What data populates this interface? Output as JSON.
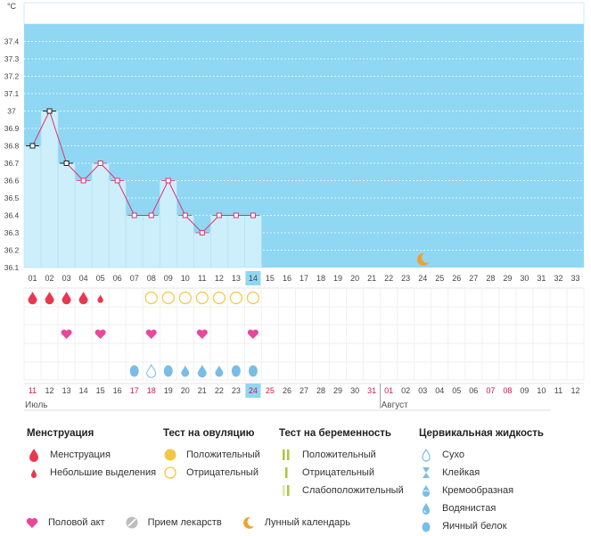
{
  "chart_data": {
    "type": "line",
    "unit": "°C",
    "ylim": [
      36.1,
      37.5
    ],
    "yticks": [
      "37.4",
      "37.3",
      "37.2",
      "37.1",
      "37",
      "36.9",
      "36.8",
      "36.7",
      "36.6",
      "36.5",
      "36.4",
      "36.3",
      "36.2",
      "36.1"
    ],
    "cycle_days": [
      "01",
      "02",
      "03",
      "04",
      "05",
      "06",
      "07",
      "08",
      "09",
      "10",
      "11",
      "12",
      "13",
      "14",
      "15",
      "16",
      "17",
      "18",
      "19",
      "20",
      "21",
      "22",
      "23",
      "24",
      "25",
      "26",
      "27",
      "28",
      "29",
      "30",
      "31",
      "32",
      "33"
    ],
    "current_cycle_day": 14,
    "temperatures": [
      36.8,
      37.0,
      36.7,
      36.6,
      36.7,
      36.6,
      36.4,
      36.4,
      36.6,
      36.4,
      36.3,
      36.4,
      36.4,
      36.4
    ],
    "dates": [
      "11",
      "12",
      "13",
      "14",
      "15",
      "16",
      "17",
      "18",
      "19",
      "20",
      "21",
      "22",
      "23",
      "24",
      "25",
      "26",
      "27",
      "28",
      "29",
      "30",
      "31",
      "01",
      "02",
      "03",
      "04",
      "05",
      "06",
      "07",
      "08",
      "09",
      "10",
      "11",
      "12"
    ],
    "weekend_dates": [
      0,
      6,
      7,
      13,
      14,
      20,
      21,
      27,
      28
    ],
    "today_index": 13,
    "month_labels": [
      {
        "label": "Июль",
        "index": 0
      },
      {
        "label": "Август",
        "index": 21
      }
    ],
    "menstruation": [
      1,
      1,
      1,
      1,
      2,
      0,
      0,
      0,
      0,
      0,
      0,
      0,
      0,
      0
    ],
    "ovulation_test": [
      0,
      0,
      0,
      0,
      0,
      0,
      0,
      2,
      2,
      2,
      2,
      2,
      2,
      2
    ],
    "intercourse": [
      0,
      0,
      1,
      0,
      1,
      0,
      0,
      1,
      0,
      0,
      1,
      0,
      0,
      1
    ],
    "cervical_fluid": [
      0,
      0,
      0,
      0,
      0,
      0,
      5,
      1,
      5,
      4,
      3,
      4,
      5,
      5
    ],
    "moon_day": 24,
    "colors": {
      "fill": "#cdeefb",
      "background": "#8fd7f3",
      "line": "#e0336b",
      "menstruation": "#e8384f",
      "heart": "#e8479b",
      "ovulation": "#f2c744",
      "drop": "#79bde6",
      "weekend": "#d5174d",
      "today": "#8fd7f3"
    }
  },
  "legend": {
    "menstruation": {
      "title": "Менструация",
      "items": [
        "Менструация",
        "Небольшие выделения"
      ]
    },
    "ovulation": {
      "title": "Тест на овуляцию",
      "items": [
        "Положительный",
        "Отрицательный"
      ]
    },
    "pregnancy": {
      "title": "Тест на беременность",
      "items": [
        "Положительный",
        "Отрицательный",
        "Слабоположительный"
      ]
    },
    "cervical": {
      "title": "Цервикальная жидкость",
      "items": [
        "Сухо",
        "Клейкая",
        "Кремообразная",
        "Водянистая",
        "Яичный белок"
      ]
    },
    "bottom": [
      "Половой акт",
      "Прием лекарств",
      "Лунный календарь"
    ]
  }
}
